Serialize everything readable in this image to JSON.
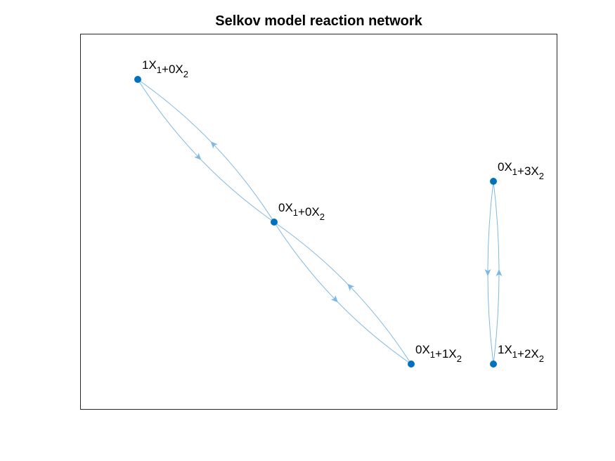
{
  "figure": {
    "title": "Selkov model reaction network",
    "colors": {
      "node": "#0072BD",
      "edge": "#7FB8E0",
      "axes": "#262626"
    },
    "nodes": [
      {
        "id": "n1",
        "parts": [
          [
            "1X",
            "1"
          ],
          [
            "+0X",
            "2"
          ]
        ]
      },
      {
        "id": "n0",
        "parts": [
          [
            "0X",
            "1"
          ],
          [
            "+0X",
            "2"
          ]
        ]
      },
      {
        "id": "n2",
        "parts": [
          [
            "0X",
            "1"
          ],
          [
            "+1X",
            "2"
          ]
        ]
      },
      {
        "id": "n3",
        "parts": [
          [
            "0X",
            "1"
          ],
          [
            "+3X",
            "2"
          ]
        ]
      },
      {
        "id": "n4",
        "parts": [
          [
            "1X",
            "1"
          ],
          [
            "+2X",
            "2"
          ]
        ]
      }
    ],
    "edges": [
      {
        "from": "n1",
        "to": "n0"
      },
      {
        "from": "n0",
        "to": "n1"
      },
      {
        "from": "n0",
        "to": "n2"
      },
      {
        "from": "n2",
        "to": "n0"
      },
      {
        "from": "n3",
        "to": "n4"
      },
      {
        "from": "n4",
        "to": "n3"
      }
    ]
  }
}
